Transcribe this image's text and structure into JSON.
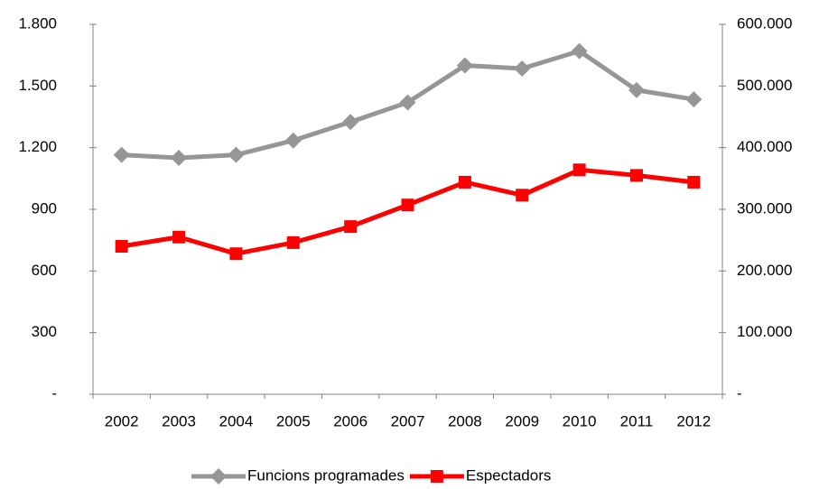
{
  "chart_data": {
    "type": "line",
    "categories": [
      "2002",
      "2003",
      "2004",
      "2005",
      "2006",
      "2007",
      "2008",
      "2009",
      "2010",
      "2011",
      "2012"
    ],
    "series": [
      {
        "name": "Funcions programades",
        "color": "#969696",
        "marker": "diamond",
        "values": [
          1165,
          1150,
          1165,
          1235,
          1325,
          1420,
          1600,
          1585,
          1670,
          1480,
          1435
        ]
      },
      {
        "name": "Espectadors",
        "color": "#ff0000",
        "marker": "square",
        "axis": "y2",
        "values": [
          240000,
          255000,
          228000,
          246000,
          272000,
          307000,
          344000,
          323000,
          364000,
          355000,
          344000
        ]
      }
    ],
    "ylim": [
      0,
      1800
    ],
    "yticks": [
      {
        "value": 0,
        "label": "-"
      },
      300,
      600,
      900,
      {
        "value": 1200,
        "label": "1.200"
      },
      {
        "value": 1500,
        "label": "1.500"
      },
      {
        "value": 1800,
        "label": "1.800"
      }
    ],
    "y2lim": [
      0,
      600000
    ],
    "y2ticks": [
      {
        "value": 0,
        "label": "-"
      },
      {
        "value": 100000,
        "label": "100.000"
      },
      {
        "value": 200000,
        "label": "200.000"
      },
      {
        "value": 300000,
        "label": "300.000"
      },
      {
        "value": 400000,
        "label": "400.000"
      },
      {
        "value": 500000,
        "label": "500.000"
      },
      {
        "value": 600000,
        "label": "600.000"
      }
    ],
    "legend": "bottom"
  }
}
